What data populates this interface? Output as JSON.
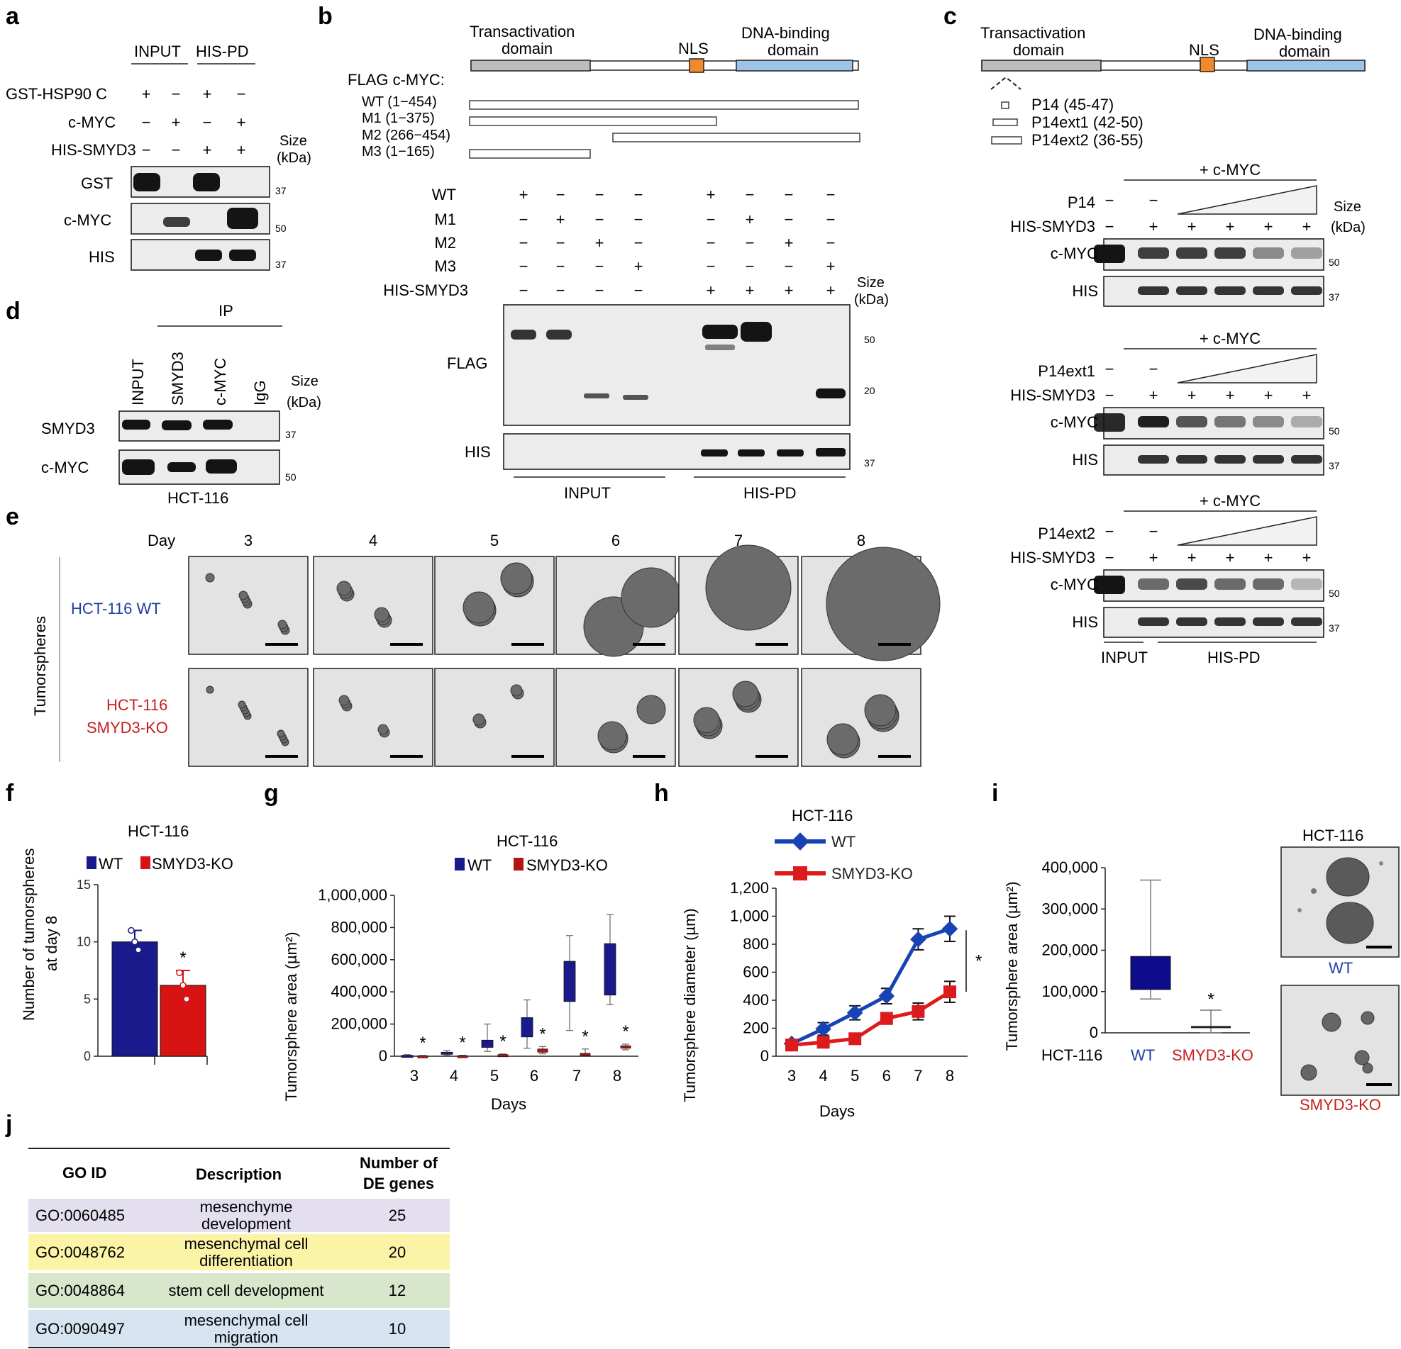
{
  "panel_letters": {
    "a": "a",
    "b": "b",
    "c": "c",
    "d": "d",
    "e": "e",
    "f": "f",
    "g": "g",
    "h": "h",
    "i": "i",
    "j": "j"
  },
  "panel_a": {
    "groups": [
      "INPUT",
      "HIS-PD"
    ],
    "row_labels": [
      "GST-HSP90 C",
      "c-MYC",
      "HIS-SMYD3"
    ],
    "lane_signs": [
      [
        "+",
        "−",
        "+",
        "−"
      ],
      [
        "−",
        "+",
        "−",
        "+"
      ],
      [
        "−",
        "−",
        "+",
        "+"
      ]
    ],
    "size_label_1": "Size",
    "size_label_2": "(kDa)",
    "blots": [
      {
        "name": "GST",
        "marker": "37"
      },
      {
        "name": "c-MYC",
        "marker": "50"
      },
      {
        "name": "HIS",
        "marker": "37"
      }
    ]
  },
  "panel_b": {
    "domains": {
      "transactivation_1": "Transactivation",
      "transactivation_2": "domain",
      "nls": "NLS",
      "dna_1": "DNA-binding",
      "dna_2": "domain"
    },
    "construct_header": "FLAG c-MYC:",
    "constructs": [
      "WT (1−454)",
      "M1 (1−375)",
      "M2 (266−454)",
      "M3 (1−165)"
    ],
    "row_labels": [
      "WT",
      "M1",
      "M2",
      "M3",
      "HIS-SMYD3"
    ],
    "lane_signs": [
      [
        "+",
        "−",
        "−",
        "−",
        "+",
        "−",
        "−",
        "−"
      ],
      [
        "−",
        "+",
        "−",
        "−",
        "−",
        "+",
        "−",
        "−"
      ],
      [
        "−",
        "−",
        "+",
        "−",
        "−",
        "−",
        "+",
        "−"
      ],
      [
        "−",
        "−",
        "−",
        "+",
        "−",
        "−",
        "−",
        "+"
      ],
      [
        "−",
        "−",
        "−",
        "−",
        "+",
        "+",
        "+",
        "+"
      ]
    ],
    "size_label_1": "Size",
    "size_label_2": "(kDa)",
    "blots": [
      {
        "name": "FLAG",
        "markers": [
          "50",
          "20"
        ]
      },
      {
        "name": "HIS",
        "markers": [
          "37"
        ]
      }
    ],
    "groups": [
      "INPUT",
      "HIS-PD"
    ]
  },
  "panel_c": {
    "domains": {
      "transactivation_1": "Transactivation",
      "transactivation_2": "domain",
      "nls": "NLS",
      "dna_1": "DNA-binding",
      "dna_2": "domain"
    },
    "peptides": [
      "P14 (45-47)",
      "P14ext1 (42-50)",
      "P14ext2 (36-55)"
    ],
    "plus_cmyc": "+ c-MYC",
    "peptide_rows": [
      "P14",
      "P14ext1",
      "P14ext2"
    ],
    "his_smyd3": "HIS-SMYD3",
    "his_signs": [
      "−",
      "+",
      "+",
      "+",
      "+",
      "+"
    ],
    "peptide_signs": [
      "−",
      "−"
    ],
    "size_label_1": "Size",
    "size_label_2": "(kDa)",
    "blot_cmyc": "c-MYC",
    "blot_his": "HIS",
    "marker_50": "50",
    "marker_37": "37",
    "groups": [
      "INPUT",
      "HIS-PD"
    ]
  },
  "panel_d": {
    "ip": "IP",
    "lanes": [
      "INPUT",
      "SMYD3",
      "c-MYC",
      "IgG"
    ],
    "size_label_1": "Size",
    "size_label_2": "(kDa)",
    "blots": [
      {
        "name": "SMYD3",
        "marker": "37"
      },
      {
        "name": "c-MYC",
        "marker": "50"
      }
    ],
    "cell_line": "HCT-116"
  },
  "panel_e": {
    "day_label": "Day",
    "days": [
      "3",
      "4",
      "5",
      "6",
      "7",
      "8"
    ],
    "side_label": "Tumorspheres",
    "row1": "HCT-116 WT",
    "row2_1": "HCT-116",
    "row2_2": "SMYD3-KO",
    "wt_color": "#1f3fa3",
    "ko_color": "#c81e1e"
  },
  "chart_data": [
    {
      "panel": "f",
      "type": "bar",
      "title": "HCT-116",
      "ylabel_1": "Number of tumorspheres",
      "ylabel_2": "at day 8",
      "categories": [
        "WT",
        "SMYD3-KO"
      ],
      "values": [
        10,
        6.2
      ],
      "errors": [
        1.0,
        1.3
      ],
      "points": [
        [
          11,
          10,
          9.3
        ],
        [
          7.3,
          6.2,
          5.0
        ]
      ],
      "ylim": [
        0,
        15
      ],
      "yticks": [
        "0",
        "5",
        "10",
        "15"
      ],
      "significance": "*",
      "colors": [
        "#1a1a8c",
        "#d71313"
      ],
      "legend": "top"
    },
    {
      "panel": "g",
      "type": "box",
      "title": "HCT-116",
      "ylabel": "Tumorsphere area (µm²)",
      "xlabel": "Days",
      "categories": [
        "3",
        "4",
        "5",
        "6",
        "7",
        "8"
      ],
      "series": [
        {
          "name": "WT",
          "color": "#1a1a8c",
          "boxes": [
            {
              "min": 0,
              "q1": 2000,
              "med": 4000,
              "q3": 6000,
              "max": 10000
            },
            {
              "min": 5000,
              "q1": 12000,
              "med": 18000,
              "q3": 25000,
              "max": 35000
            },
            {
              "min": 30000,
              "q1": 55000,
              "med": 75000,
              "q3": 100000,
              "max": 200000
            },
            {
              "min": 50000,
              "q1": 120000,
              "med": 170000,
              "q3": 240000,
              "max": 350000
            },
            {
              "min": 160000,
              "q1": 340000,
              "med": 450000,
              "q3": 590000,
              "max": 750000
            },
            {
              "min": 320000,
              "q1": 380000,
              "med": 480000,
              "q3": 700000,
              "max": 880000
            }
          ]
        },
        {
          "name": "SMYD3-KO",
          "color": "#b31515",
          "boxes": [
            {
              "min": 0,
              "q1": 1000,
              "med": 2000,
              "q3": 3000,
              "max": 5000
            },
            {
              "min": 0,
              "q1": 2000,
              "med": 3000,
              "q3": 4000,
              "max": 6000
            },
            {
              "min": 2000,
              "q1": 5000,
              "med": 8000,
              "q3": 10000,
              "max": 14000
            },
            {
              "min": 15000,
              "q1": 25000,
              "med": 35000,
              "q3": 45000,
              "max": 60000
            },
            {
              "min": 5000,
              "q1": 12000,
              "med": 15000,
              "q3": 18000,
              "max": 45000
            },
            {
              "min": 40000,
              "q1": 50000,
              "med": 58000,
              "q3": 65000,
              "max": 75000
            }
          ]
        }
      ],
      "ylim": [
        0,
        1000000
      ],
      "yticks": [
        "0",
        "200,000",
        "400,000",
        "600,000",
        "800,000",
        "1,000,000"
      ],
      "significance": "*",
      "legend": "top"
    },
    {
      "panel": "h",
      "type": "line",
      "title": "HCT-116",
      "ylabel": "Tumorsphere diameter (µm)",
      "xlabel": "Days",
      "x": [
        3,
        4,
        5,
        6,
        7,
        8
      ],
      "series": [
        {
          "name": "WT",
          "color": "#1843b4",
          "values": [
            90,
            195,
            310,
            430,
            835,
            910
          ],
          "errors": [
            20,
            45,
            50,
            55,
            75,
            90
          ]
        },
        {
          "name": "SMYD3-KO",
          "color": "#dc1c1c",
          "values": [
            80,
            100,
            125,
            270,
            320,
            460
          ],
          "errors": [
            25,
            30,
            30,
            40,
            60,
            75
          ]
        }
      ],
      "ylim": [
        0,
        1200
      ],
      "yticks": [
        "0",
        "200",
        "400",
        "600",
        "800",
        "1,000",
        "1,200"
      ],
      "significance": "*",
      "legend": "top-left"
    },
    {
      "panel": "i",
      "type": "box",
      "title": "HCT-116",
      "ylabel": "Tumorsphere area (µm²)",
      "xprefix": "HCT-116",
      "categories": [
        "WT",
        "SMYD3-KO"
      ],
      "boxes": [
        {
          "min": 82000,
          "q1": 105000,
          "med": 125000,
          "q3": 185000,
          "max": 370000,
          "color": "#0d0d8c"
        },
        {
          "min": 0,
          "q1": 12000,
          "med": 14000,
          "q3": 16000,
          "max": 55000,
          "color": "#222222"
        }
      ],
      "ylim": [
        0,
        400000
      ],
      "yticks": [
        "0",
        "100,000",
        "200,000",
        "300,000",
        "400,000"
      ],
      "significance": "*",
      "image_labels": [
        "WT",
        "SMYD3-KO"
      ]
    }
  ],
  "panel_j": {
    "headers": [
      "GO ID",
      "Description",
      "Number of DE genes"
    ],
    "rows": [
      {
        "id": "GO:0060485",
        "desc_1": "mesenchyme",
        "desc_2": "development",
        "count": "25",
        "color": "#e4dfef"
      },
      {
        "id": "GO:0048762",
        "desc_1": "mesenchymal cell",
        "desc_2": "differentiation",
        "count": "20",
        "color": "#fbf3a6"
      },
      {
        "id": "GO:0048864",
        "desc_1": "stem cell development",
        "desc_2": "",
        "count": "12",
        "color": "#d8e6cc"
      },
      {
        "id": "GO:0090497",
        "desc_1": "mesenchymal cell",
        "desc_2": "migration",
        "count": "10",
        "color": "#d6e4f2"
      }
    ]
  }
}
